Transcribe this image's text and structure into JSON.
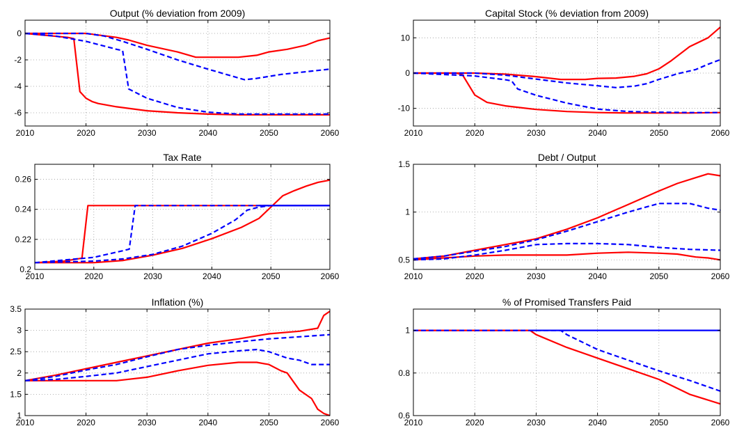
{
  "chart_data": [
    {
      "type": "line",
      "title": "Output (% deviation from 2009)",
      "xlim": [
        2010,
        2060
      ],
      "ylim": [
        -7,
        1
      ],
      "xticks": [
        2010,
        2020,
        2030,
        2040,
        2050,
        2060
      ],
      "yticks": [
        -6,
        -4,
        -2,
        0
      ],
      "ytick_labels": [
        "-6",
        "-4",
        "-2",
        "0"
      ],
      "grid": true,
      "series": [
        {
          "color": "#ff0000",
          "dash": false,
          "x": [
            2010,
            2017,
            2018,
            2019,
            2020,
            2021,
            2022,
            2025,
            2030,
            2035,
            2040,
            2045,
            2050,
            2055,
            2060
          ],
          "y": [
            0,
            -0.3,
            -0.4,
            -4.4,
            -4.9,
            -5.15,
            -5.3,
            -5.55,
            -5.85,
            -6.0,
            -6.1,
            -6.15,
            -6.15,
            -6.15,
            -6.15
          ]
        },
        {
          "color": "#ff0000",
          "dash": false,
          "x": [
            2010,
            2015,
            2020,
            2025,
            2027,
            2030,
            2035,
            2038,
            2040,
            2045,
            2048,
            2050,
            2053,
            2056,
            2058,
            2060
          ],
          "y": [
            0,
            0,
            0,
            -0.3,
            -0.5,
            -0.9,
            -1.4,
            -1.8,
            -1.8,
            -1.8,
            -1.65,
            -1.4,
            -1.2,
            -0.9,
            -0.55,
            -0.35
          ]
        },
        {
          "color": "#0000ff",
          "dash": true,
          "x": [
            2010,
            2015,
            2020,
            2025,
            2026,
            2027,
            2030,
            2035,
            2040,
            2045,
            2050,
            2055,
            2060
          ],
          "y": [
            0,
            -0.2,
            -0.6,
            -1.2,
            -1.3,
            -4.2,
            -4.9,
            -5.6,
            -5.95,
            -6.1,
            -6.1,
            -6.1,
            -6.1
          ]
        },
        {
          "color": "#0000ff",
          "dash": true,
          "x": [
            2010,
            2020,
            2023,
            2026,
            2030,
            2035,
            2040,
            2043,
            2046,
            2048,
            2052,
            2056,
            2060
          ],
          "y": [
            0,
            0,
            -0.2,
            -0.6,
            -1.2,
            -2.0,
            -2.7,
            -3.1,
            -3.5,
            -3.4,
            -3.1,
            -2.9,
            -2.7
          ]
        }
      ]
    },
    {
      "type": "line",
      "title": "Capital Stock (% deviation from 2009)",
      "xlim": [
        2010,
        2060
      ],
      "ylim": [
        -15,
        15
      ],
      "xticks": [
        2010,
        2020,
        2030,
        2040,
        2050,
        2060
      ],
      "yticks": [
        -10,
        0,
        10
      ],
      "ytick_labels": [
        "-10",
        "0",
        "10"
      ],
      "grid": true,
      "series": [
        {
          "color": "#ff0000",
          "dash": false,
          "x": [
            2010,
            2017,
            2018,
            2020,
            2022,
            2025,
            2030,
            2035,
            2040,
            2045,
            2050,
            2055,
            2060
          ],
          "y": [
            0,
            0,
            -0.5,
            -6.2,
            -8.3,
            -9.3,
            -10.3,
            -10.9,
            -11.2,
            -11.3,
            -11.3,
            -11.3,
            -11.2
          ]
        },
        {
          "color": "#ff0000",
          "dash": false,
          "x": [
            2010,
            2020,
            2025,
            2030,
            2034,
            2038,
            2040,
            2043,
            2046,
            2048,
            2050,
            2052,
            2055,
            2058,
            2060
          ],
          "y": [
            0,
            0,
            -0.3,
            -1.0,
            -1.8,
            -1.8,
            -1.5,
            -1.4,
            -0.9,
            -0.2,
            1.2,
            3.5,
            7.5,
            10.0,
            13.0
          ]
        },
        {
          "color": "#0000ff",
          "dash": true,
          "x": [
            2010,
            2020,
            2025,
            2026,
            2027,
            2030,
            2035,
            2040,
            2045,
            2050,
            2055,
            2060
          ],
          "y": [
            0,
            -0.8,
            -1.9,
            -2.2,
            -4.5,
            -6.3,
            -8.5,
            -10.2,
            -10.9,
            -11.1,
            -11.2,
            -11.2
          ]
        },
        {
          "color": "#0000ff",
          "dash": true,
          "x": [
            2010,
            2020,
            2025,
            2030,
            2035,
            2040,
            2043,
            2046,
            2048,
            2050,
            2053,
            2056,
            2058,
            2060
          ],
          "y": [
            0,
            0,
            -0.6,
            -1.7,
            -2.8,
            -3.6,
            -4.1,
            -3.7,
            -3.0,
            -1.8,
            -0.2,
            1.0,
            2.5,
            3.8
          ]
        }
      ]
    },
    {
      "type": "line",
      "title": "Tax Rate",
      "xlim": [
        2010,
        2060
      ],
      "ylim": [
        0.2,
        0.27
      ],
      "xticks": [
        2010,
        2020,
        2030,
        2040,
        2050,
        2060
      ],
      "yticks": [
        0.2,
        0.22,
        0.24,
        0.26
      ],
      "ytick_labels": [
        "0.2",
        "0.22",
        "0.24",
        "0.26"
      ],
      "grid": true,
      "series": [
        {
          "color": "#ff0000",
          "dash": false,
          "x": [
            2010,
            2015,
            2018,
            2019,
            2030,
            2040,
            2050,
            2060
          ],
          "y": [
            0.2045,
            0.2055,
            0.2075,
            0.2425,
            0.2425,
            0.2425,
            0.2425,
            0.2425
          ]
        },
        {
          "color": "#ff0000",
          "dash": false,
          "x": [
            2010,
            2020,
            2025,
            2030,
            2035,
            2040,
            2045,
            2048,
            2050,
            2052,
            2054,
            2056,
            2058,
            2060
          ],
          "y": [
            0.2045,
            0.2045,
            0.206,
            0.2095,
            0.214,
            0.2205,
            0.228,
            0.234,
            0.2415,
            0.249,
            0.2525,
            0.2555,
            0.258,
            0.2595
          ]
        },
        {
          "color": "#0000ff",
          "dash": true,
          "x": [
            2010,
            2020,
            2025,
            2026,
            2027,
            2030,
            2040,
            2050,
            2060
          ],
          "y": [
            0.2045,
            0.208,
            0.2125,
            0.2135,
            0.2425,
            0.2425,
            0.2425,
            0.2425,
            0.2425
          ]
        },
        {
          "color": "#0000ff",
          "dash": true,
          "x": [
            2010,
            2020,
            2025,
            2030,
            2035,
            2040,
            2044,
            2046,
            2048,
            2050,
            2060
          ],
          "y": [
            0.2045,
            0.2055,
            0.207,
            0.21,
            0.2155,
            0.224,
            0.233,
            0.2395,
            0.2415,
            0.2425,
            0.2425
          ]
        },
        {
          "color": "#0000ff",
          "dash": false,
          "x": [
            2048,
            2060
          ],
          "y": [
            0.2425,
            0.2425
          ]
        }
      ]
    },
    {
      "type": "line",
      "title": "Debt / Output",
      "xlim": [
        2010,
        2060
      ],
      "ylim": [
        0.4,
        1.5
      ],
      "xticks": [
        2010,
        2020,
        2030,
        2040,
        2050,
        2060
      ],
      "yticks": [
        0.5,
        1,
        1.5
      ],
      "ytick_labels": [
        "0.5",
        "1",
        "1.5"
      ],
      "grid": true,
      "series": [
        {
          "color": "#ff0000",
          "dash": false,
          "x": [
            2010,
            2015,
            2020,
            2025,
            2030,
            2035,
            2040,
            2045,
            2050,
            2053,
            2056,
            2058,
            2060
          ],
          "y": [
            0.5,
            0.52,
            0.54,
            0.55,
            0.55,
            0.55,
            0.57,
            0.58,
            0.57,
            0.56,
            0.53,
            0.52,
            0.5
          ]
        },
        {
          "color": "#ff0000",
          "dash": false,
          "x": [
            2010,
            2015,
            2020,
            2025,
            2030,
            2035,
            2040,
            2045,
            2050,
            2053,
            2056,
            2058,
            2060
          ],
          "y": [
            0.51,
            0.54,
            0.6,
            0.66,
            0.72,
            0.82,
            0.94,
            1.08,
            1.22,
            1.3,
            1.36,
            1.4,
            1.38
          ]
        },
        {
          "color": "#0000ff",
          "dash": true,
          "x": [
            2010,
            2015,
            2020,
            2025,
            2030,
            2035,
            2040,
            2045,
            2050,
            2055,
            2060
          ],
          "y": [
            0.5,
            0.51,
            0.55,
            0.6,
            0.66,
            0.67,
            0.67,
            0.66,
            0.63,
            0.61,
            0.6
          ]
        },
        {
          "color": "#0000ff",
          "dash": true,
          "x": [
            2010,
            2015,
            2020,
            2025,
            2030,
            2035,
            2040,
            2045,
            2050,
            2055,
            2058,
            2060
          ],
          "y": [
            0.51,
            0.54,
            0.59,
            0.64,
            0.71,
            0.8,
            0.9,
            1.0,
            1.09,
            1.09,
            1.04,
            1.02
          ]
        }
      ]
    },
    {
      "type": "line",
      "title": "Inflation (%)",
      "xlim": [
        2010,
        2060
      ],
      "ylim": [
        1,
        3.5
      ],
      "xticks": [
        2010,
        2020,
        2030,
        2040,
        2050,
        2060
      ],
      "yticks": [
        1,
        1.5,
        2,
        2.5,
        3,
        3.5
      ],
      "ytick_labels": [
        "1",
        "1.5",
        "2",
        "2.5",
        "3",
        "3.5"
      ],
      "grid": true,
      "series": [
        {
          "color": "#ff0000",
          "dash": false,
          "x": [
            2010,
            2015,
            2020,
            2025,
            2030,
            2035,
            2040,
            2045,
            2048,
            2050,
            2052,
            2053,
            2055,
            2057,
            2058,
            2059,
            2060
          ],
          "y": [
            1.82,
            1.82,
            1.82,
            1.82,
            1.9,
            2.05,
            2.18,
            2.25,
            2.25,
            2.2,
            2.05,
            2.0,
            1.6,
            1.4,
            1.15,
            1.05,
            1.0
          ]
        },
        {
          "color": "#ff0000",
          "dash": false,
          "x": [
            2010,
            2015,
            2020,
            2025,
            2030,
            2035,
            2040,
            2045,
            2050,
            2055,
            2058,
            2059,
            2060
          ],
          "y": [
            1.82,
            1.95,
            2.1,
            2.25,
            2.4,
            2.55,
            2.7,
            2.8,
            2.92,
            2.98,
            3.05,
            3.35,
            3.45
          ]
        },
        {
          "color": "#0000ff",
          "dash": true,
          "x": [
            2010,
            2015,
            2020,
            2025,
            2030,
            2035,
            2040,
            2045,
            2048,
            2050,
            2053,
            2055,
            2057,
            2060
          ],
          "y": [
            1.82,
            1.85,
            1.92,
            2.0,
            2.15,
            2.3,
            2.45,
            2.52,
            2.55,
            2.5,
            2.35,
            2.3,
            2.2,
            2.2
          ]
        },
        {
          "color": "#0000ff",
          "dash": true,
          "x": [
            2010,
            2015,
            2020,
            2025,
            2030,
            2035,
            2040,
            2045,
            2050,
            2055,
            2060
          ],
          "y": [
            1.82,
            1.92,
            2.07,
            2.2,
            2.38,
            2.55,
            2.65,
            2.73,
            2.8,
            2.85,
            2.9
          ]
        }
      ]
    },
    {
      "type": "line",
      "title": "% of Promised Transfers Paid",
      "xlim": [
        2010,
        2060
      ],
      "ylim": [
        0.6,
        1.1
      ],
      "xticks": [
        2010,
        2020,
        2030,
        2040,
        2050,
        2060
      ],
      "yticks": [
        0.6,
        0.8,
        1
      ],
      "ytick_labels": [
        "0.6",
        "0.8",
        "1"
      ],
      "grid": true,
      "series": [
        {
          "color": "#0000ff",
          "dash": false,
          "x": [
            2010,
            2060
          ],
          "y": [
            1.0,
            1.0
          ]
        },
        {
          "color": "#ff0000",
          "dash": false,
          "x": [
            2010,
            2029,
            2030,
            2035,
            2040,
            2045,
            2050,
            2055,
            2060
          ],
          "y": [
            1.0,
            1.0,
            0.98,
            0.92,
            0.87,
            0.82,
            0.77,
            0.7,
            0.655
          ]
        },
        {
          "color": "#0000ff",
          "dash": true,
          "x": [
            2010,
            2034,
            2035,
            2040,
            2045,
            2050,
            2055,
            2060
          ],
          "y": [
            1.0,
            1.0,
            0.98,
            0.91,
            0.86,
            0.81,
            0.765,
            0.715
          ]
        }
      ]
    }
  ]
}
